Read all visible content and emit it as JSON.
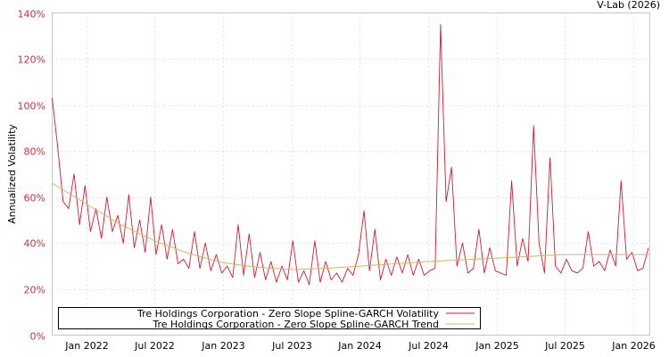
{
  "chart_data": {
    "type": "line",
    "credit": "V-Lab (2026)",
    "ylabel": "Annualized Volatility",
    "xlabel": "",
    "xlim": [
      2021.75,
      2026.12
    ],
    "ylim": [
      0,
      140
    ],
    "grid": true,
    "legend_position": "bottom",
    "y_ticks": [
      {
        "value": 0,
        "label": "0%"
      },
      {
        "value": 20,
        "label": "20%"
      },
      {
        "value": 40,
        "label": "40%"
      },
      {
        "value": 60,
        "label": "60%"
      },
      {
        "value": 80,
        "label": "80%"
      },
      {
        "value": 100,
        "label": "100%"
      },
      {
        "value": 120,
        "label": "120%"
      },
      {
        "value": 140,
        "label": "140%"
      }
    ],
    "x_ticks": [
      {
        "value": 2022.0,
        "label": "Jan 2022"
      },
      {
        "value": 2022.5,
        "label": "Jul 2022"
      },
      {
        "value": 2023.0,
        "label": "Jan 2023"
      },
      {
        "value": 2023.5,
        "label": "Jul 2023"
      },
      {
        "value": 2024.0,
        "label": "Jan 2024"
      },
      {
        "value": 2024.5,
        "label": "Jul 2024"
      },
      {
        "value": 2025.0,
        "label": "Jan 2025"
      },
      {
        "value": 2025.5,
        "label": "Jul 2025"
      },
      {
        "value": 2026.0,
        "label": "Jan 2026"
      }
    ],
    "series": [
      {
        "name": "Tre Holdings Corporation - Zero Slope Spline-GARCH Volatility",
        "color": "#d7192b",
        "x_start": 2021.75,
        "x_step": 0.04,
        "values": [
          103,
          82,
          58,
          55,
          70,
          48,
          65,
          45,
          55,
          42,
          60,
          45,
          52,
          40,
          61,
          38,
          50,
          36,
          60,
          35,
          48,
          33,
          46,
          31,
          33,
          29,
          45,
          29,
          40,
          28,
          35,
          27,
          30,
          25,
          48,
          26,
          44,
          25,
          36,
          24,
          32,
          23,
          30,
          24,
          41,
          23,
          28,
          22,
          41,
          23,
          32,
          24,
          27,
          23,
          29,
          26,
          35,
          54,
          28,
          46,
          24,
          33,
          26,
          34,
          27,
          35,
          26,
          33,
          26,
          28,
          29,
          135,
          58,
          73,
          30,
          40,
          27,
          29,
          46,
          27,
          38,
          28,
          27,
          26,
          67,
          30,
          42,
          32,
          91,
          40,
          27,
          77,
          30,
          27,
          33,
          28,
          27,
          29,
          45,
          30,
          32,
          28,
          37,
          30,
          67,
          33,
          36,
          28,
          29,
          38
        ]
      },
      {
        "name": "Tre Holdings Corporation - Zero Slope Spline-GARCH Trend",
        "color": "#d9b55a",
        "x": [
          2021.75,
          2022.0,
          2022.25,
          2022.5,
          2022.75,
          2023.0,
          2023.25,
          2023.5,
          2023.75,
          2024.0,
          2024.5,
          2025.0,
          2025.5,
          2026.12
        ],
        "values": [
          66,
          57,
          48,
          41,
          35.5,
          31.5,
          29.5,
          28.5,
          29,
          30,
          32,
          33.5,
          35,
          35
        ]
      }
    ]
  }
}
